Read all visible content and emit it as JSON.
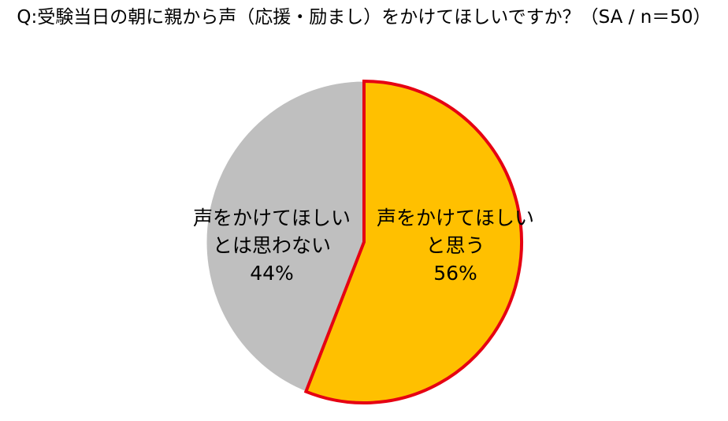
{
  "chart_data": {
    "type": "pie",
    "title": "Q:受験当日の朝に親から声（応援・励まし）をかけてほしいですか？（SA / n＝50）",
    "slices": [
      {
        "label_lines": [
          "声をかけてほしい",
          "と思う"
        ],
        "value": 56,
        "display": "56%",
        "color": "#FFC000",
        "outline": "#E60012"
      },
      {
        "label_lines": [
          "声をかけてほしい",
          "とは思わない"
        ],
        "value": 44,
        "display": "44%",
        "color": "#BFBFBF"
      }
    ],
    "start": "12 o'clock",
    "direction": "clockwise",
    "legend": "none"
  }
}
